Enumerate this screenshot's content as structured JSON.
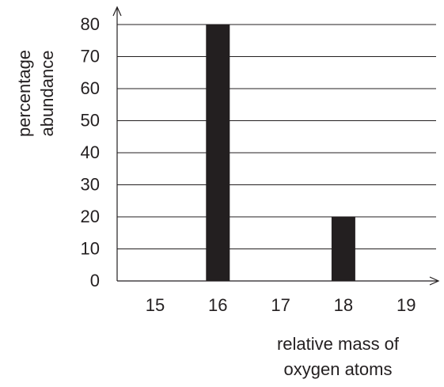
{
  "chart_data": {
    "type": "bar",
    "ylabel": [
      "percentage",
      "abundance"
    ],
    "xlabel": [
      "relative mass of",
      "oxygen atoms"
    ],
    "categories": [
      15,
      16,
      17,
      18,
      19
    ],
    "values": [
      0,
      80,
      0,
      20,
      0
    ],
    "color": "#231f20",
    "ylim": [
      0,
      80
    ],
    "yticks": [
      0,
      10,
      20,
      30,
      40,
      50,
      60,
      70,
      80
    ],
    "grid": true
  }
}
